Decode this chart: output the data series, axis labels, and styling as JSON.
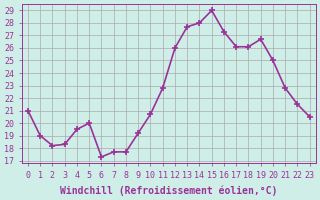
{
  "x": [
    0,
    1,
    2,
    3,
    4,
    5,
    6,
    7,
    8,
    9,
    10,
    11,
    12,
    13,
    14,
    15,
    16,
    17,
    18,
    19,
    20,
    21,
    22,
    23
  ],
  "y": [
    21,
    19,
    18.2,
    18.3,
    19.5,
    20,
    17.3,
    17.7,
    17.7,
    19.2,
    20.7,
    22.8,
    26,
    27.7,
    28,
    29,
    27.3,
    26.1,
    26.1,
    26.7,
    25,
    22.8,
    21.5,
    20.5
  ],
  "line_color": "#993399",
  "marker": "+",
  "marker_size": 5,
  "linewidth": 1.2,
  "xlabel": "Windchill (Refroidissement éolien,°C)",
  "xlabel_fontsize": 7,
  "ylabel_ticks": [
    17,
    18,
    19,
    20,
    21,
    22,
    23,
    24,
    25,
    26,
    27,
    28,
    29
  ],
  "ylim": [
    16.8,
    29.5
  ],
  "xlim": [
    -0.5,
    23.5
  ],
  "xtick_labels": [
    "0",
    "1",
    "2",
    "3",
    "4",
    "5",
    "6",
    "7",
    "8",
    "9",
    "10",
    "11",
    "12",
    "13",
    "14",
    "15",
    "16",
    "17",
    "18",
    "19",
    "20",
    "21",
    "22",
    "23"
  ],
  "bg_color": "#d0eee8",
  "grid_color": "#aaaaaa",
  "tick_color": "#993399",
  "tick_fontsize": 6
}
